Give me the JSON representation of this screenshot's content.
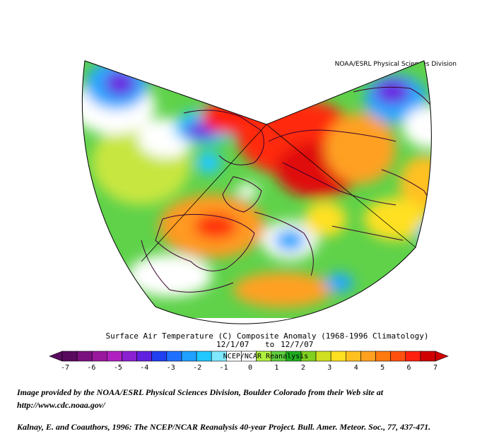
{
  "header": {
    "source_label": "NOAA/ESRL Physical Sciences Division"
  },
  "map": {
    "title_line1": "Surface Air Temperature (C) Composite Anomaly (1968-1996 Climatology)",
    "date_from": "12/1/07",
    "date_to_word": "to",
    "date_to": "12/7/07",
    "dataset_label": "NCEP/NCAR Reanalysis",
    "colors": {
      "land_outline": "#3a0030",
      "frame": "#000000"
    }
  },
  "colorbar": {
    "tick_labels": [
      "-7",
      "-6",
      "-5",
      "-4",
      "-3",
      "-2",
      "-1",
      "0",
      "1",
      "2",
      "3",
      "4",
      "5",
      "6",
      "7"
    ],
    "colors": [
      "#5a0a5e",
      "#7a107e",
      "#9a189e",
      "#b020c0",
      "#8a20d0",
      "#6020e0",
      "#2040f0",
      "#2070ff",
      "#20a0ff",
      "#20c8ff",
      "#80e8ff",
      "#ffffff",
      "#ffffff",
      "#b0f040",
      "#60d040",
      "#20b020",
      "#80d020",
      "#d0e020",
      "#ffe020",
      "#ffc020",
      "#ffa020",
      "#ff7a10",
      "#ff5010",
      "#ff2010",
      "#d00000"
    ],
    "value_range": [
      -7,
      7
    ]
  },
  "footer": {
    "credit_line1": "Image provided by the NOAA/ESRL Physical Sciences Division, Boulder Colorado from their Web site at",
    "credit_line2": "http://www.cdc.noaa.gov/",
    "citation": "Kalnay, E. and Coauthors, 1996: The NCEP/NCAR Reanalysis 40-year Project. Bull. Amer. Meteor. Soc., 77, 437-471."
  }
}
